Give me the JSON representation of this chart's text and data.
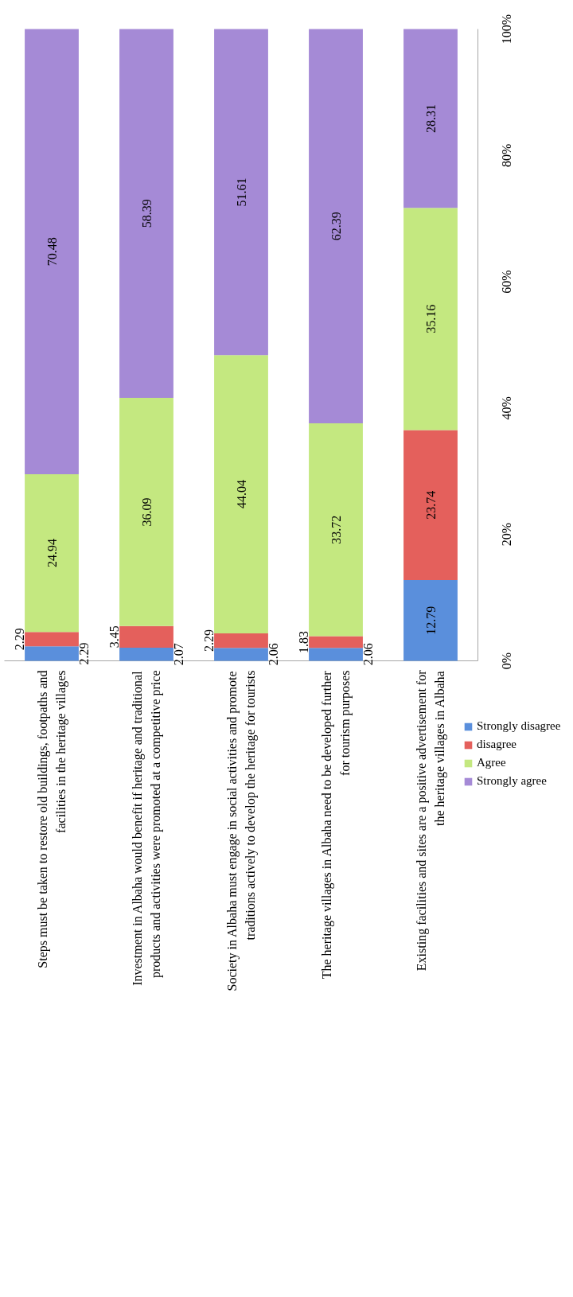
{
  "chart_data": {
    "type": "bar",
    "stacked": true,
    "data_labels": true,
    "legend": "right",
    "grid": false,
    "categories": [
      "Steps must be taken to restore old buildings, footpaths and facilities in the heritage villages",
      "Investment in Albaha would benefit if heritage and traditional products and activities were promoted at a competitive price",
      "Society in Albaha must engage in social activities and promote traditions actively to develop the heritage for tourists",
      "The heritage villages in Albaha need to be developed further for tourism purposes",
      "Existing facilities and sites are a positive advertisement for the heritage villages in Albaha"
    ],
    "series": [
      {
        "name": "Strongly disagree",
        "color": "#5a8fdc",
        "values": [
          2.29,
          2.07,
          2.06,
          2.06,
          12.79
        ]
      },
      {
        "name": "disagree",
        "color": "#e4605c",
        "values": [
          2.29,
          3.45,
          2.29,
          1.83,
          23.74
        ]
      },
      {
        "name": "Agree",
        "color": "#c4e880",
        "values": [
          24.94,
          36.09,
          44.04,
          33.72,
          35.16
        ]
      },
      {
        "name": "Strongly agree",
        "color": "#a58ad6",
        "values": [
          70.48,
          58.39,
          51.61,
          62.39,
          28.31
        ]
      }
    ],
    "ylim": [
      0,
      100
    ],
    "yticks": [
      {
        "value": 0,
        "label": "0%"
      },
      {
        "value": 20,
        "label": "20%"
      },
      {
        "value": 40,
        "label": "40%"
      },
      {
        "value": 60,
        "label": "60%"
      },
      {
        "value": 80,
        "label": "80%"
      },
      {
        "value": 100,
        "label": "100%"
      }
    ]
  }
}
